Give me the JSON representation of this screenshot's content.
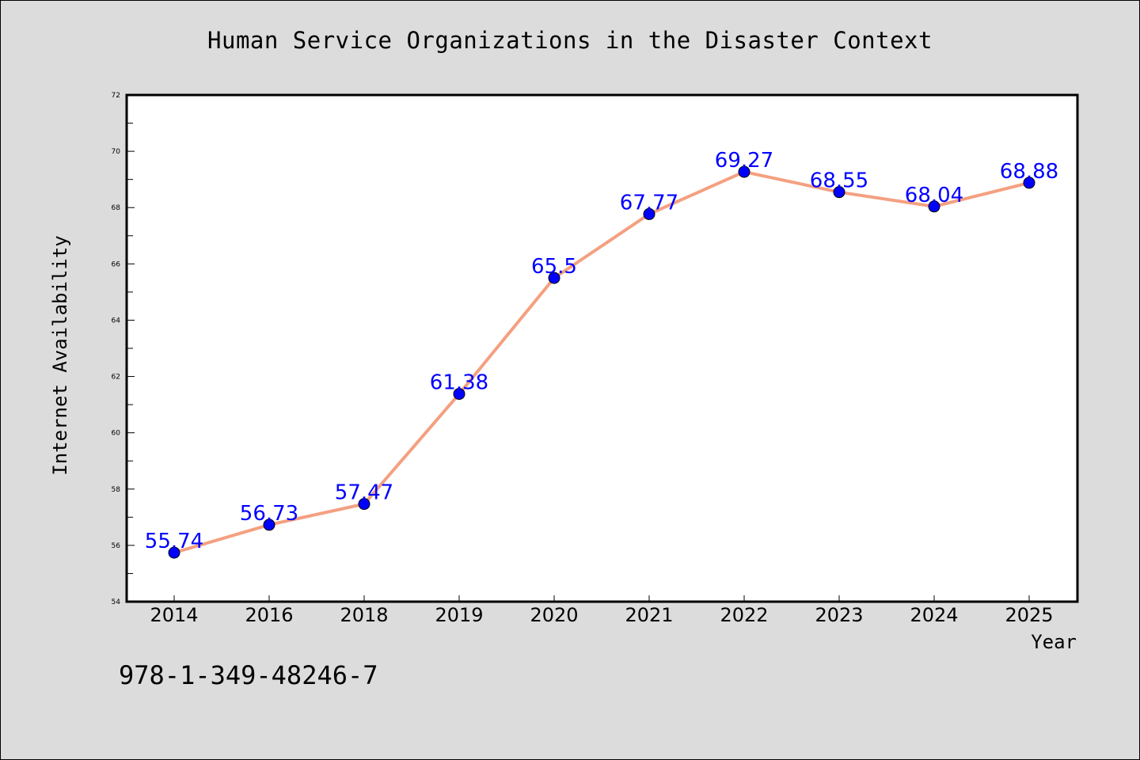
{
  "chart_data": {
    "type": "line",
    "title": "Human Service Organizations in the Disaster Context",
    "xlabel": "Year",
    "ylabel": "Internet Availability",
    "categories": [
      "2014",
      "2016",
      "2018",
      "2019",
      "2020",
      "2021",
      "2022",
      "2023",
      "2024",
      "2025"
    ],
    "series": [
      {
        "values": [
          55.74,
          56.73,
          57.47,
          61.38,
          65.5,
          67.77,
          69.27,
          68.55,
          68.04,
          68.88
        ],
        "data_labels": [
          "55.74",
          "56.73",
          "57.47",
          "61.38",
          "65.5",
          "67.77",
          "69.27",
          "68.55",
          "68.04",
          "68.88"
        ]
      }
    ],
    "ylim": [
      54,
      72
    ],
    "y_ticks": [
      "54",
      "56",
      "58",
      "60",
      "62",
      "64",
      "66",
      "68",
      "70",
      "72"
    ],
    "grid": false,
    "line_color": "#f4a080",
    "marker_color": "#0000ff",
    "label_color": "#0000ff",
    "background": "#dcdcdc",
    "plot_background": "#ffffff"
  },
  "footnote": "978-1-349-48246-7"
}
